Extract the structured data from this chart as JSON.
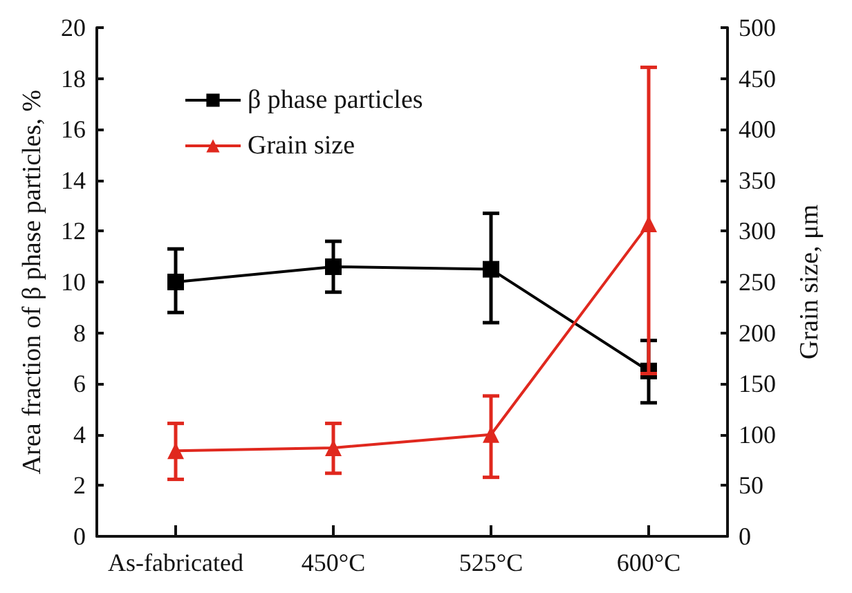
{
  "chart_data": {
    "type": "line",
    "xlabel": null,
    "ylabel": "Area fraction of β phase particles, %",
    "y2label": "Grain size, μm",
    "categories": [
      "As-fabricated",
      "450°C",
      "525°C",
      "600°C"
    ],
    "series": [
      {
        "name": "β phase particles",
        "color": "#000000",
        "marker": "square",
        "values": [
          10.0,
          10.6,
          10.5,
          6.5
        ],
        "errors": [
          [
            8.8,
            11.3
          ],
          [
            9.6,
            11.6
          ],
          [
            8.4,
            12.7
          ],
          [
            5.25,
            7.7
          ]
        ]
      },
      {
        "name": "Grain size",
        "color": "#e0281e",
        "marker": "triangle",
        "axis": "y2",
        "values": [
          84,
          87,
          100,
          307
        ],
        "errors": [
          [
            56,
            111
          ],
          [
            62,
            111
          ],
          [
            58,
            138
          ],
          [
            160,
            461
          ]
        ]
      }
    ],
    "ylim": [
      0,
      20
    ],
    "yticks": [
      0,
      2,
      4,
      6,
      8,
      10,
      12,
      14,
      16,
      18,
      20
    ],
    "y2lim": [
      0,
      500
    ],
    "y2ticks": [
      0,
      50,
      100,
      150,
      200,
      250,
      300,
      350,
      400,
      450,
      500
    ],
    "legend": "top left",
    "grid": false,
    "line_style": "solid"
  }
}
